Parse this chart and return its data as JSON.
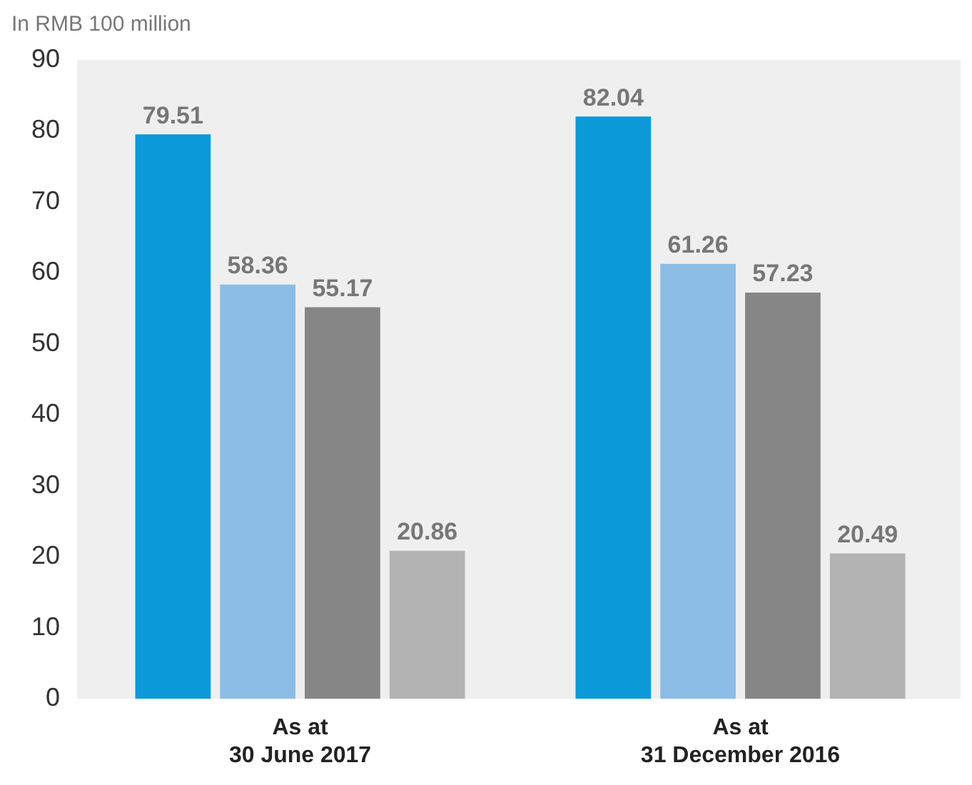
{
  "chart_data": {
    "type": "bar",
    "ylabel": "In RMB 100 million",
    "categories": [
      "As at\n30 June 2017",
      "As at\n31 December 2016"
    ],
    "series": [
      {
        "color": "#0c9ad8",
        "values": [
          79.51,
          82.04
        ]
      },
      {
        "color": "#8bbde6",
        "values": [
          58.36,
          61.26
        ]
      },
      {
        "color": "#868686",
        "values": [
          55.17,
          57.23
        ]
      },
      {
        "color": "#b3b3b3",
        "values": [
          20.86,
          20.49
        ]
      }
    ],
    "ylim": [
      0,
      90
    ],
    "yticks": [
      0,
      10,
      20,
      30,
      40,
      50,
      60,
      70,
      80,
      90
    ],
    "grid": false,
    "legend": false,
    "data_labels": true
  }
}
